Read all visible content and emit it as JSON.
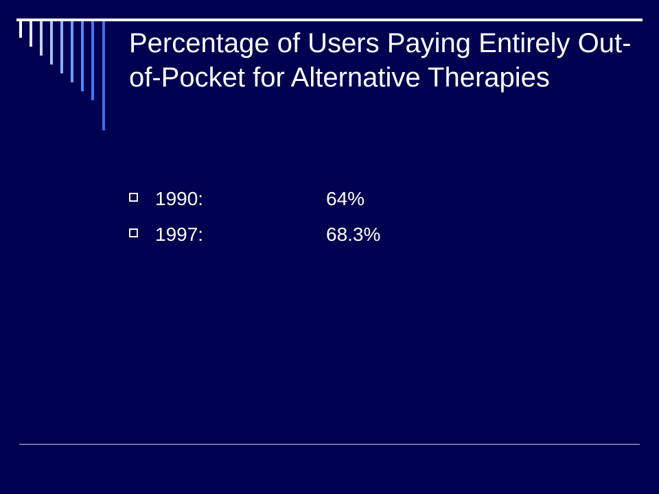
{
  "slide": {
    "title": "Percentage of Users Paying Entirely Out-of-Pocket for Alternative Therapies",
    "bullets": [
      {
        "year": "1990:",
        "value": "64%"
      },
      {
        "year": "1997:",
        "value": "68.3%"
      }
    ]
  },
  "theme": {
    "background": "#000050",
    "text": "#ffffff",
    "stripe_colors": [
      "#ffffff",
      "#dfe9ff",
      "#c3d6ff",
      "#a6c2ff",
      "#8aaeff",
      "#6e9aff",
      "#5587f7",
      "#4577ef",
      "#3f6fe6"
    ],
    "rule": "#c9c9e8"
  }
}
